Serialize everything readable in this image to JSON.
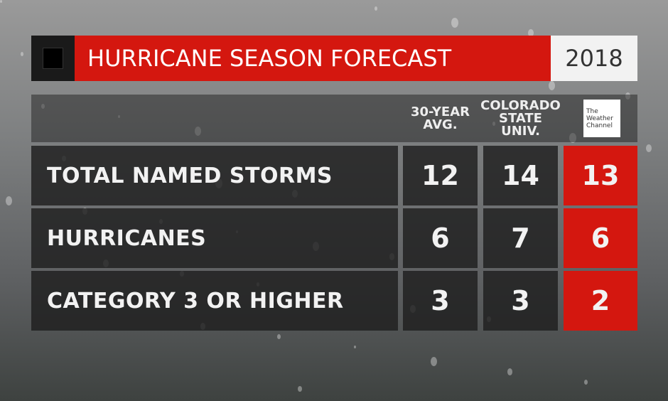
{
  "header": {
    "title": "HURRICANE SEASON FORECAST",
    "year": "2018"
  },
  "table": {
    "columns": [
      [
        "30-YEAR",
        "AVG."
      ],
      [
        "COLORADO",
        "STATE",
        "UNIV."
      ],
      [
        "The",
        "Weather",
        "Channel"
      ]
    ],
    "rows": [
      [
        "TOTAL NAMED STORMS",
        "12",
        "14",
        "13"
      ],
      [
        "HURRICANES",
        "6",
        "7",
        "6"
      ],
      [
        "CATEGORY 3 OR HIGHER",
        "3",
        "3",
        "2"
      ]
    ]
  }
}
